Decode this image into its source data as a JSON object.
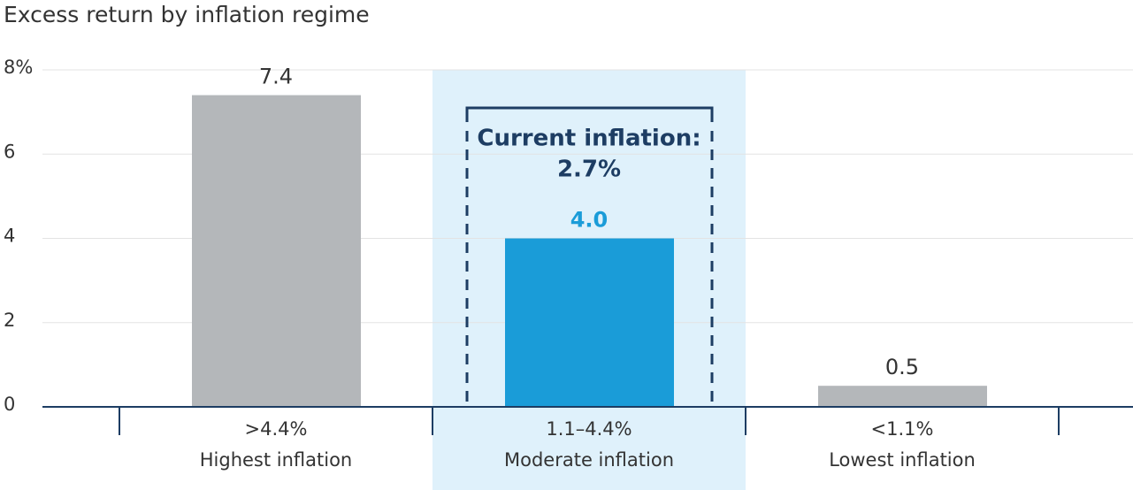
{
  "chart_data": {
    "type": "bar",
    "title": "Excess return by inflation regime",
    "categories": [
      ">4.4%",
      "1.1–4.4%",
      "<1.1%"
    ],
    "category_descriptions": [
      "Highest inflation",
      "Moderate inflation",
      "Lowest inflation"
    ],
    "values": [
      7.4,
      4.0,
      0.5
    ],
    "value_labels": [
      "7.4",
      "4.0",
      "0.5"
    ],
    "colors": [
      "#b4b7ba",
      "#1a9cd8",
      "#b4b7ba"
    ],
    "highlight_category": 1,
    "highlight_color": "#dff1fb",
    "annotation": {
      "lines": [
        "Current inflation:",
        "2.7%"
      ],
      "color": "#1d3d63"
    },
    "ylim": [
      0,
      8
    ],
    "yticks": [
      0,
      2,
      4,
      6,
      {
        "value": 8,
        "label": "8%"
      }
    ],
    "grid": true
  }
}
